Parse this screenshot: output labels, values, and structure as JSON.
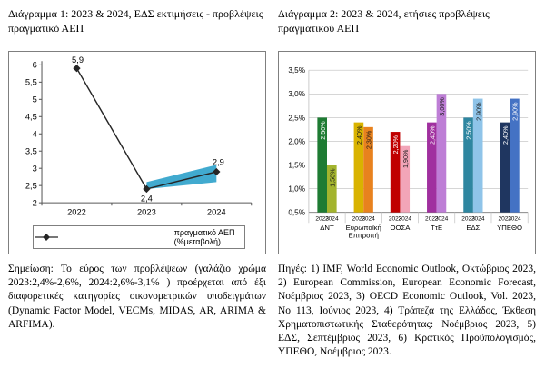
{
  "left_panel": {
    "title": "Διάγραμμα 1: 2023 & 2024, ΕΔΣ εκτιμήσεις - προβλέψεις πραγματικό ΑΕΠ",
    "note": "Σημείωση: Το εύρος των προβλέψεων (γαλάζιο χρώμα 2023:2,4%-2,6%, 2024:2,6%-3,1% ) προέρχεται από έξι διαφορετικές κατηγορίες οικονομετρικών υποδειγμάτων (Dynamic Factor Model, VECMs, MIDAS, AR, ARIMA & ARFIMA)."
  },
  "right_panel": {
    "title": "Διάγραμμα 2: 2023 & 2024, ετήσιες προβλέψεις πραγματικού ΑΕΠ",
    "sources": "Πηγές: 1) IMF, World Economic Outlook, Οκτώβριος 2023, 2) European Commission, European Economic Forecast, Νοέμβριος 2023, 3) OECD Economic Outlook, Vol. 2023, No 113, Ιούνιος 2023, 4) Τράπεζα της Ελλάδος, Έκθεση Χρηματοπιστωτικής Σταθερότητας: Νοέμβριος 2023, 5) ΕΔΣ, Σεπτέμβριος 2023, 6) Κρατικός Προϋπολογισμός, ΥΠΕΘΟ, Νοέμβριος 2023."
  },
  "colors": {
    "forecast_band_blue": "#41aacf",
    "line_black": "#262626",
    "chart_border_gray": "#7f7f7f",
    "gridline_gray": "#c9c9c9"
  },
  "chart_data": [
    {
      "type": "line",
      "title": "Διάγραμμα 1: 2023 & 2024, ΕΔΣ εκτιμήσεις - προβλέψεις πραγματικό ΑΕΠ",
      "x": [
        "2022",
        "2023",
        "2024"
      ],
      "series": [
        {
          "name": "πραγματικό ΑΕΠ (%μεταβολή)",
          "values": [
            5.9,
            2.4,
            2.9
          ],
          "point_labels": [
            "5,9",
            "2,4",
            "2,9"
          ],
          "color": "#262626",
          "marker": "diamond"
        }
      ],
      "forecast_band": {
        "description": "εύρος προβλέψεων (γαλάζιο): 2023: 2,4%-2,6%, 2024: 2,6%-3,1%",
        "x": [
          "2023",
          "2024"
        ],
        "lower": [
          2.4,
          2.6
        ],
        "upper": [
          2.6,
          3.1
        ],
        "color": "#41aacf"
      },
      "ylim": [
        2,
        6
      ],
      "ytick_values": [
        2,
        2.5,
        3,
        3.5,
        4,
        4.5,
        5,
        5.5,
        6
      ],
      "ytick_labels": [
        "2",
        "2,5",
        "3",
        "3,5",
        "4",
        "4,5",
        "5",
        "5,5",
        "6"
      ],
      "grid": false,
      "legend": {
        "position": "bottom",
        "label": "πραγματικό ΑΕΠ (%μεταβολή)"
      }
    },
    {
      "type": "bar",
      "title": "Διάγραμμα 2: 2023 & 2024, ετήσιες προβλέψεις πραγματικού ΑΕΠ",
      "categories": [
        "ΔΝΤ",
        "Ευρωπαϊκή Επιτροπή",
        "ΟΟΣΑ",
        "ΤτΕ",
        "ΕΔΣ",
        "ΥΠΕΘΟ"
      ],
      "group_year_labels": [
        "2023",
        "2024"
      ],
      "series": [
        {
          "name": "2023",
          "values": [
            2.5,
            2.4,
            2.2,
            2.4,
            2.5,
            2.4
          ],
          "bar_labels": [
            "2,50%",
            "2,40%",
            "2,20%",
            "2,40%",
            "2,50%",
            "2,40%"
          ],
          "colors": [
            "#1e7b33",
            "#d9b300",
            "#c00000",
            "#a0309f",
            "#2e86a0",
            "#1f3660"
          ]
        },
        {
          "name": "2024",
          "values": [
            1.5,
            2.3,
            1.9,
            3.0,
            2.9,
            2.9
          ],
          "bar_labels": [
            "1,50%",
            "2,30%",
            "1,90%",
            "3,00%",
            "2,90%",
            "2,90%"
          ],
          "colors": [
            "#a3b42e",
            "#e8821e",
            "#f2a5b8",
            "#be7ed6",
            "#8fc4e9",
            "#4472c4"
          ]
        }
      ],
      "ylim": [
        0.5,
        3.5
      ],
      "ytick_values": [
        0.5,
        1.0,
        1.5,
        2.0,
        2.5,
        3.0,
        3.5
      ],
      "ytick_labels": [
        "0,5%",
        "1,0%",
        "1,5%",
        "2,0%",
        "2,5%",
        "3,0%",
        "3,5%"
      ],
      "grid": true,
      "legend_position": "none"
    }
  ]
}
